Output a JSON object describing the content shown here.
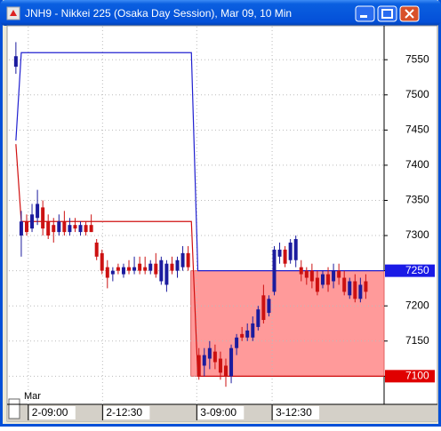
{
  "window": {
    "title": "JNH9 - Nikkei 225 (Osaka Day Session), Mar 09, 10 Min"
  },
  "chart_data": {
    "type": "candlestick",
    "annotation": "Mar",
    "up_color": "#1b1b9e",
    "down_color": "#cc1111",
    "xlim": [
      -1.3,
      68.4
    ],
    "xticks": [
      {
        "value": 2.3,
        "label": "2-09:00"
      },
      {
        "value": 16.1,
        "label": "2-12:30"
      },
      {
        "value": 33.6,
        "label": "3-09:00"
      },
      {
        "value": 47.6,
        "label": "3-12:30"
      }
    ],
    "ylim": [
      7060,
      7597
    ],
    "yticks": [
      7550,
      7500,
      7450,
      7400,
      7350,
      7300,
      7250,
      7200,
      7150,
      7100
    ],
    "grid": true,
    "highlight_ticks": [
      {
        "tick": 6,
        "color": "#1a1ae6"
      },
      {
        "tick": 9,
        "color": "#e00000"
      }
    ],
    "zone": {
      "x0": 32.5,
      "low": 7100,
      "high": 7250,
      "color": "#ff9a9a"
    },
    "lines": [
      {
        "color": "#2020d0",
        "x": [
          0,
          1,
          32.6,
          33.8,
          68.4
        ],
        "values": [
          7435,
          7560,
          7560,
          7250,
          7250
        ]
      },
      {
        "color": "#d01010",
        "x": [
          0,
          1,
          32.6,
          33.8,
          68.4
        ],
        "values": [
          7430,
          7320,
          7320,
          7100,
          7100
        ]
      }
    ],
    "candles": [
      {
        "open": 7540,
        "high": 7575,
        "low": 7530,
        "close": 7555
      },
      {
        "open": 7300,
        "high": 7335,
        "low": 7270,
        "close": 7320
      },
      {
        "open": 7320,
        "high": 7330,
        "low": 7300,
        "close": 7305
      },
      {
        "open": 7310,
        "high": 7345,
        "low": 7305,
        "close": 7330
      },
      {
        "open": 7325,
        "high": 7365,
        "low": 7315,
        "close": 7345
      },
      {
        "open": 7340,
        "high": 7350,
        "low": 7300,
        "close": 7310
      },
      {
        "open": 7320,
        "high": 7330,
        "low": 7295,
        "close": 7300
      },
      {
        "open": 7315,
        "high": 7325,
        "low": 7290,
        "close": 7305
      },
      {
        "open": 7305,
        "high": 7330,
        "low": 7300,
        "close": 7320
      },
      {
        "open": 7320,
        "high": 7335,
        "low": 7300,
        "close": 7305
      },
      {
        "open": 7305,
        "high": 7325,
        "low": 7300,
        "close": 7315
      },
      {
        "open": 7315,
        "high": 7325,
        "low": 7305,
        "close": 7310
      },
      {
        "open": 7305,
        "high": 7320,
        "low": 7300,
        "close": 7315
      },
      {
        "open": 7315,
        "high": 7320,
        "low": 7300,
        "close": 7305
      },
      {
        "open": 7315,
        "high": 7330,
        "low": 7305,
        "close": 7305
      },
      {
        "open": 7290,
        "high": 7295,
        "low": 7265,
        "close": 7270
      },
      {
        "open": 7275,
        "high": 7280,
        "low": 7245,
        "close": 7250
      },
      {
        "open": 7255,
        "high": 7265,
        "low": 7225,
        "close": 7240
      },
      {
        "open": 7245,
        "high": 7255,
        "low": 7235,
        "close": 7250
      },
      {
        "open": 7255,
        "high": 7260,
        "low": 7245,
        "close": 7250
      },
      {
        "open": 7245,
        "high": 7260,
        "low": 7240,
        "close": 7255
      },
      {
        "open": 7255,
        "high": 7265,
        "low": 7245,
        "close": 7250
      },
      {
        "open": 7250,
        "high": 7270,
        "low": 7245,
        "close": 7255
      },
      {
        "open": 7260,
        "high": 7270,
        "low": 7245,
        "close": 7250
      },
      {
        "open": 7255,
        "high": 7270,
        "low": 7245,
        "close": 7250
      },
      {
        "open": 7250,
        "high": 7265,
        "low": 7245,
        "close": 7260
      },
      {
        "open": 7260,
        "high": 7275,
        "low": 7240,
        "close": 7245
      },
      {
        "open": 7235,
        "high": 7270,
        "low": 7230,
        "close": 7265
      },
      {
        "open": 7230,
        "high": 7265,
        "low": 7220,
        "close": 7260
      },
      {
        "open": 7260,
        "high": 7270,
        "low": 7245,
        "close": 7250
      },
      {
        "open": 7250,
        "high": 7270,
        "low": 7240,
        "close": 7265
      },
      {
        "open": 7255,
        "high": 7285,
        "low": 7250,
        "close": 7275
      },
      {
        "open": 7275,
        "high": 7285,
        "low": 7250,
        "close": 7255
      },
      null,
      {
        "open": 7130,
        "high": 7140,
        "low": 7095,
        "close": 7100
      },
      {
        "open": 7115,
        "high": 7140,
        "low": 7100,
        "close": 7130
      },
      {
        "open": 7125,
        "high": 7150,
        "low": 7110,
        "close": 7140
      },
      {
        "open": 7135,
        "high": 7145,
        "low": 7110,
        "close": 7120
      },
      {
        "open": 7125,
        "high": 7135,
        "low": 7095,
        "close": 7105
      },
      {
        "open": 7115,
        "high": 7125,
        "low": 7085,
        "close": 7100
      },
      {
        "open": 7100,
        "high": 7145,
        "low": 7090,
        "close": 7140
      },
      {
        "open": 7140,
        "high": 7160,
        "low": 7130,
        "close": 7155
      },
      {
        "open": 7160,
        "high": 7170,
        "low": 7150,
        "close": 7155
      },
      {
        "open": 7155,
        "high": 7175,
        "low": 7150,
        "close": 7165
      },
      {
        "open": 7155,
        "high": 7185,
        "low": 7150,
        "close": 7175
      },
      {
        "open": 7170,
        "high": 7200,
        "low": 7165,
        "close": 7195
      },
      {
        "open": 7215,
        "high": 7230,
        "low": 7175,
        "close": 7180
      },
      {
        "open": 7190,
        "high": 7215,
        "low": 7185,
        "close": 7210
      },
      {
        "open": 7220,
        "high": 7285,
        "low": 7215,
        "close": 7280
      },
      {
        "open": 7270,
        "high": 7290,
        "low": 7260,
        "close": 7280
      },
      {
        "open": 7280,
        "high": 7285,
        "low": 7255,
        "close": 7260
      },
      {
        "open": 7265,
        "high": 7295,
        "low": 7260,
        "close": 7290
      },
      {
        "open": 7265,
        "high": 7300,
        "low": 7255,
        "close": 7295
      },
      {
        "open": 7255,
        "high": 7265,
        "low": 7235,
        "close": 7245
      },
      {
        "open": 7250,
        "high": 7255,
        "low": 7230,
        "close": 7240
      },
      {
        "open": 7250,
        "high": 7260,
        "low": 7225,
        "close": 7235
      },
      {
        "open": 7240,
        "high": 7250,
        "low": 7215,
        "close": 7220
      },
      {
        "open": 7230,
        "high": 7250,
        "low": 7225,
        "close": 7245
      },
      {
        "open": 7245,
        "high": 7255,
        "low": 7220,
        "close": 7230
      },
      {
        "open": 7235,
        "high": 7260,
        "low": 7225,
        "close": 7250
      },
      {
        "open": 7250,
        "high": 7260,
        "low": 7230,
        "close": 7240
      },
      {
        "open": 7240,
        "high": 7250,
        "low": 7215,
        "close": 7220
      },
      {
        "open": 7215,
        "high": 7240,
        "low": 7210,
        "close": 7235
      },
      {
        "open": 7235,
        "high": 7245,
        "low": 7205,
        "close": 7210
      },
      {
        "open": 7210,
        "high": 7240,
        "low": 7205,
        "close": 7230
      },
      {
        "open": 7235,
        "high": 7245,
        "low": 7210,
        "close": 7220
      }
    ]
  }
}
